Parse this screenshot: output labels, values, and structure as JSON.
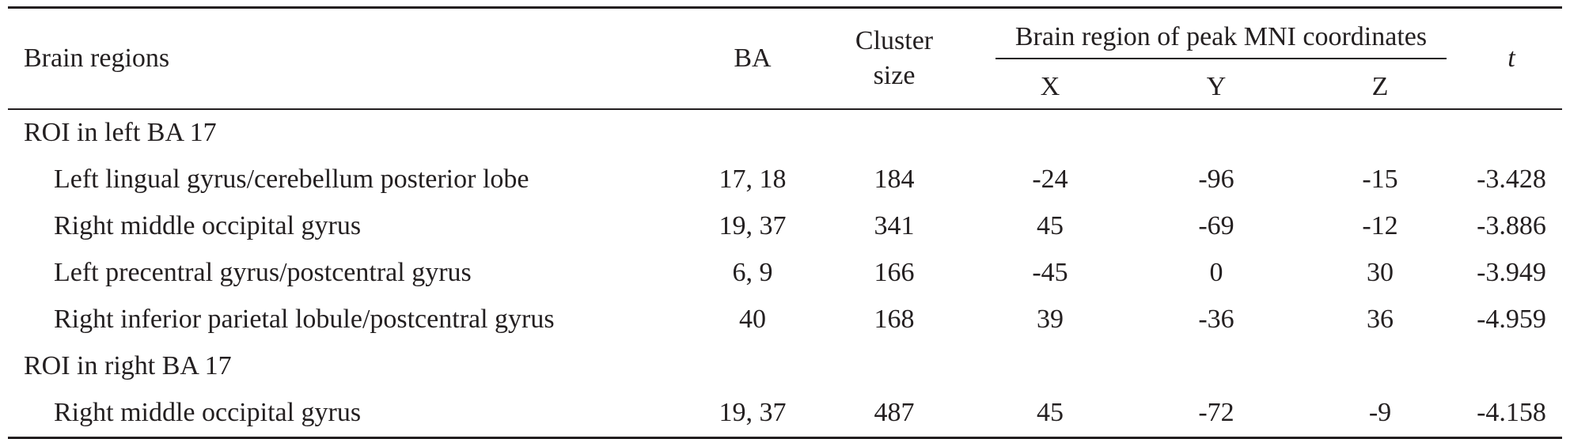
{
  "header": {
    "brain_regions": "Brain regions",
    "ba": "BA",
    "cluster_line1": "Cluster",
    "cluster_line2": "size",
    "peak_group": "Brain region of peak MNI coordinates",
    "x": "X",
    "y": "Y",
    "z": "Z",
    "t": "t"
  },
  "groups": [
    {
      "label": "ROI in left BA 17",
      "rows": [
        {
          "region": "Left lingual gyrus/cerebellum posterior lobe",
          "ba": "17, 18",
          "cluster": "184",
          "x": "-24",
          "y": "-96",
          "z": "-15",
          "t": "-3.428"
        },
        {
          "region": "Right middle occipital gyrus",
          "ba": "19, 37",
          "cluster": "341",
          "x": "45",
          "y": "-69",
          "z": "-12",
          "t": "-3.886"
        },
        {
          "region": "Left precentral gyrus/postcentral gyrus",
          "ba": "6, 9",
          "cluster": "166",
          "x": "-45",
          "y": "0",
          "z": "30",
          "t": "-3.949"
        },
        {
          "region": "Right inferior parietal lobule/postcentral gyrus",
          "ba": "40",
          "cluster": "168",
          "x": "39",
          "y": "-36",
          "z": "36",
          "t": "-4.959"
        }
      ]
    },
    {
      "label": "ROI in right BA 17",
      "rows": [
        {
          "region": "Right middle occipital gyrus",
          "ba": "19, 37",
          "cluster": "487",
          "x": "45",
          "y": "-72",
          "z": "-9",
          "t": "-4.158"
        }
      ]
    }
  ]
}
